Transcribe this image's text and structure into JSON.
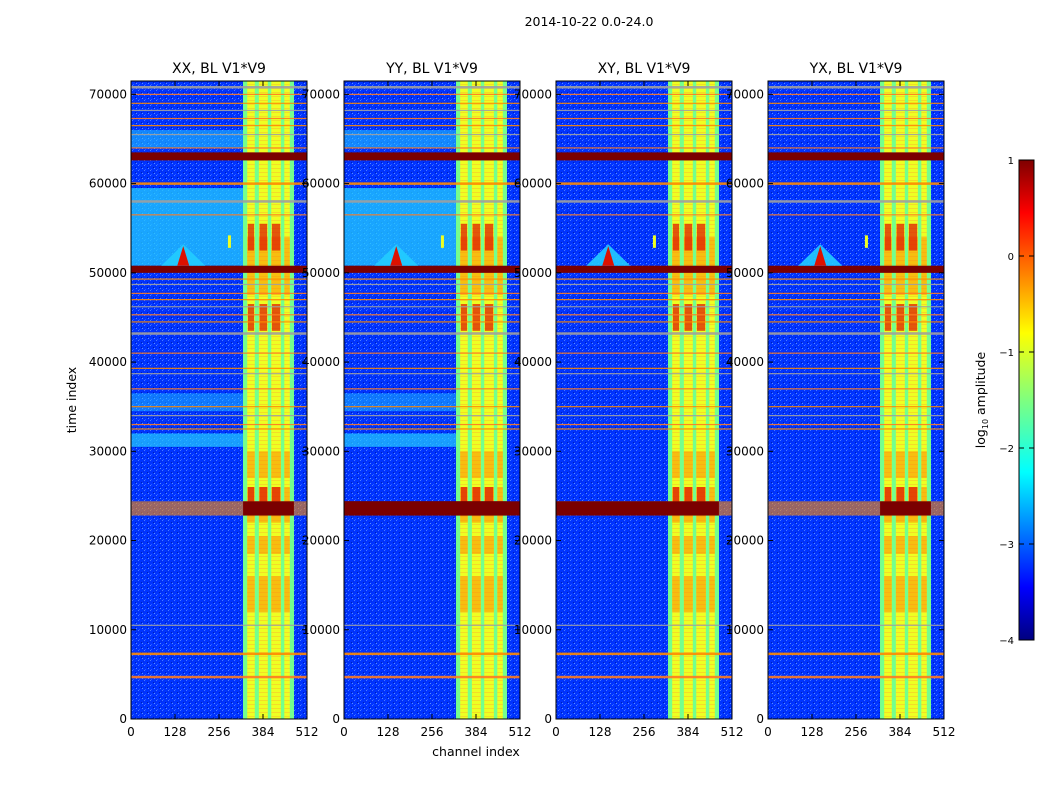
{
  "figure_title": "2014-10-22 0.0-24.0",
  "chart_data": [
    {
      "type": "heatmap",
      "title": "XX, BL V1*V9",
      "xlabel": "",
      "ylabel": "time index",
      "xlim": [
        0,
        512
      ],
      "ylim": [
        0,
        71500
      ],
      "xticks": [
        0,
        128,
        256,
        384,
        512
      ],
      "yticks": [
        0,
        10000,
        20000,
        30000,
        40000,
        50000,
        60000,
        70000
      ],
      "colormap": "jet",
      "value_range": [
        -4,
        1
      ],
      "rfi_channel_band": [
        326,
        474
      ],
      "saturated_time_bands": [
        [
          22800,
          24400
        ],
        [
          50000,
          50800
        ],
        [
          62600,
          63500
        ]
      ],
      "bright_feature": {
        "channel": 152,
        "time": 51500
      }
    },
    {
      "type": "heatmap",
      "title": "YY, BL V1*V9",
      "xlabel": "channel index",
      "ylabel": "",
      "xlim": [
        0,
        512
      ],
      "ylim": [
        0,
        71500
      ],
      "xticks": [
        0,
        128,
        256,
        384,
        512
      ],
      "yticks": [
        0,
        10000,
        20000,
        30000,
        40000,
        50000,
        60000,
        70000
      ],
      "colormap": "jet",
      "value_range": [
        -4,
        1
      ],
      "rfi_channel_band": [
        326,
        474
      ],
      "saturated_time_bands": [
        [
          22800,
          24400
        ],
        [
          50000,
          50800
        ],
        [
          62600,
          63500
        ]
      ],
      "bright_feature": {
        "channel": 152,
        "time": 51500
      }
    },
    {
      "type": "heatmap",
      "title": "XY, BL V1*V9",
      "xlabel": "",
      "ylabel": "",
      "xlim": [
        0,
        512
      ],
      "ylim": [
        0,
        71500
      ],
      "xticks": [
        0,
        128,
        256,
        384,
        512
      ],
      "yticks": [
        0,
        10000,
        20000,
        30000,
        40000,
        50000,
        60000,
        70000
      ],
      "colormap": "jet",
      "value_range": [
        -4,
        1
      ],
      "rfi_channel_band": [
        326,
        474
      ],
      "saturated_time_bands": [
        [
          22800,
          24400
        ],
        [
          50000,
          50800
        ],
        [
          62600,
          63500
        ]
      ],
      "bright_feature": {
        "channel": 152,
        "time": 51500
      }
    },
    {
      "type": "heatmap",
      "title": "YX, BL V1*V9",
      "xlabel": "",
      "ylabel": "",
      "xlim": [
        0,
        512
      ],
      "ylim": [
        0,
        71500
      ],
      "xticks": [
        0,
        128,
        256,
        384,
        512
      ],
      "yticks": [
        0,
        10000,
        20000,
        30000,
        40000,
        50000,
        60000,
        70000
      ],
      "colormap": "jet",
      "value_range": [
        -4,
        1
      ],
      "rfi_channel_band": [
        326,
        474
      ],
      "saturated_time_bands": [
        [
          22800,
          24400
        ],
        [
          50000,
          50800
        ],
        [
          62600,
          63500
        ]
      ],
      "bright_feature": {
        "channel": 152,
        "time": 51500
      }
    }
  ],
  "colorbar": {
    "label": "log",
    "label_sub": "10",
    "label_rest": " amplitude",
    "ticks": [
      1,
      0,
      -1,
      -2,
      -3,
      -4
    ],
    "tick_labels": [
      "1",
      "0",
      "−1",
      "−2",
      "−3",
      "−4"
    ],
    "range": [
      -4,
      1
    ]
  },
  "colors": {
    "dark_blue": "#00009a",
    "blue": "#0033ff",
    "cyan": "#22ccff",
    "green_cyan": "#55ffaa",
    "yellow": "#eeff22",
    "orange": "#ff8800",
    "red": "#dd1100",
    "dark_red": "#7a0000"
  }
}
